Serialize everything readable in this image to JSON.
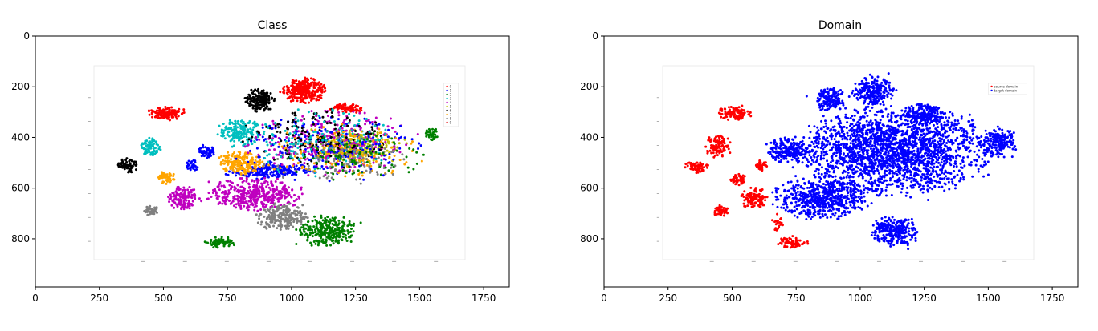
{
  "chart_data": [
    {
      "id": "class",
      "type": "scatter",
      "title": "Class",
      "xlabel": "",
      "ylabel": "",
      "xlim": [
        0,
        1850
      ],
      "ylim": [
        990,
        0
      ],
      "xticks": [
        0,
        250,
        500,
        750,
        1000,
        1250,
        1500,
        1750
      ],
      "yticks": [
        0,
        200,
        400,
        600,
        800
      ],
      "inner_plot": {
        "frame": [
          225,
          180,
          1670,
          880
        ],
        "legend_location": "upper right",
        "legend_entries": [
          "0",
          "1",
          "2",
          "3",
          "4",
          "5",
          "6",
          "7",
          "8",
          "9"
        ],
        "point_colors": [
          "#ff0000",
          "#0000ff",
          "#008000",
          "#00bfbf",
          "#bf00bf",
          "#bfbf00",
          "#000000",
          "#ffa500",
          "#808080",
          "#e41a1c"
        ],
        "clusters": [
          {
            "class": "0",
            "color": "#ff0000",
            "cx": 1050,
            "cy": 215,
            "rx": 70,
            "ry": 40,
            "n": 320
          },
          {
            "class": "0",
            "color": "#ff0000",
            "cx": 510,
            "cy": 305,
            "rx": 60,
            "ry": 22,
            "n": 120
          },
          {
            "class": "0",
            "color": "#ff0000",
            "cx": 1215,
            "cy": 285,
            "rx": 55,
            "ry": 18,
            "n": 80
          },
          {
            "class": "1",
            "color": "#0000ff",
            "cx": 920,
            "cy": 535,
            "rx": 150,
            "ry": 25,
            "n": 200
          },
          {
            "class": "1",
            "color": "#0000ff",
            "cx": 670,
            "cy": 455,
            "rx": 30,
            "ry": 22,
            "n": 60
          },
          {
            "class": "1",
            "color": "#0000ff",
            "cx": 610,
            "cy": 510,
            "rx": 22,
            "ry": 20,
            "n": 35
          },
          {
            "class": "2",
            "color": "#008000",
            "cx": 1140,
            "cy": 770,
            "rx": 100,
            "ry": 50,
            "n": 280
          },
          {
            "class": "2",
            "color": "#008000",
            "cx": 725,
            "cy": 815,
            "rx": 50,
            "ry": 18,
            "n": 70
          },
          {
            "class": "2",
            "color": "#008000",
            "cx": 1545,
            "cy": 385,
            "rx": 25,
            "ry": 20,
            "n": 40
          },
          {
            "class": "3",
            "color": "#00bfbf",
            "cx": 800,
            "cy": 380,
            "rx": 75,
            "ry": 45,
            "n": 180
          },
          {
            "class": "3",
            "color": "#00bfbf",
            "cx": 450,
            "cy": 440,
            "rx": 35,
            "ry": 30,
            "n": 80
          },
          {
            "class": "4",
            "color": "#bf00bf",
            "cx": 860,
            "cy": 625,
            "rx": 160,
            "ry": 55,
            "n": 420
          },
          {
            "class": "4",
            "color": "#bf00bf",
            "cx": 575,
            "cy": 640,
            "rx": 50,
            "ry": 40,
            "n": 140
          },
          {
            "class": "5",
            "color": "#bfbf00",
            "cx": 1260,
            "cy": 440,
            "rx": 150,
            "ry": 60,
            "n": 260
          },
          {
            "class": "6",
            "color": "#000000",
            "cx": 880,
            "cy": 250,
            "rx": 50,
            "ry": 40,
            "n": 170
          },
          {
            "class": "6",
            "color": "#000000",
            "cx": 355,
            "cy": 510,
            "rx": 40,
            "ry": 25,
            "n": 70
          },
          {
            "class": "7",
            "color": "#ffa500",
            "cx": 800,
            "cy": 500,
            "rx": 80,
            "ry": 40,
            "n": 200
          },
          {
            "class": "7",
            "color": "#ffa500",
            "cx": 510,
            "cy": 560,
            "rx": 30,
            "ry": 20,
            "n": 60
          },
          {
            "class": "8",
            "color": "#808080",
            "cx": 960,
            "cy": 715,
            "rx": 90,
            "ry": 40,
            "n": 220
          },
          {
            "class": "8",
            "color": "#808080",
            "cx": 450,
            "cy": 690,
            "rx": 22,
            "ry": 16,
            "n": 45
          },
          {
            "class": "mixed",
            "color": "#bf00bf",
            "cx": 1150,
            "cy": 420,
            "rx": 280,
            "ry": 110,
            "n": 300
          },
          {
            "class": "mixed",
            "color": "#0000ff",
            "cx": 1150,
            "cy": 440,
            "rx": 280,
            "ry": 110,
            "n": 220
          },
          {
            "class": "mixed",
            "color": "#000000",
            "cx": 1100,
            "cy": 400,
            "rx": 250,
            "ry": 100,
            "n": 180
          },
          {
            "class": "mixed",
            "color": "#00bfbf",
            "cx": 1100,
            "cy": 420,
            "rx": 260,
            "ry": 110,
            "n": 150
          },
          {
            "class": "mixed",
            "color": "#ffa500",
            "cx": 1200,
            "cy": 460,
            "rx": 260,
            "ry": 90,
            "n": 130
          },
          {
            "class": "mixed",
            "color": "#808080",
            "cx": 1200,
            "cy": 500,
            "rx": 250,
            "ry": 80,
            "n": 110
          },
          {
            "class": "mixed",
            "color": "#008000",
            "cx": 1250,
            "cy": 480,
            "rx": 220,
            "ry": 90,
            "n": 90
          }
        ]
      }
    },
    {
      "id": "domain",
      "type": "scatter",
      "title": "Domain",
      "xlabel": "",
      "ylabel": "",
      "xlim": [
        0,
        1850
      ],
      "ylim": [
        990,
        0
      ],
      "xticks": [
        0,
        250,
        500,
        750,
        1000,
        1250,
        1500,
        1750
      ],
      "yticks": [
        0,
        200,
        400,
        600,
        800
      ],
      "inner_plot": {
        "frame": [
          225,
          180,
          1670,
          880
        ],
        "legend_location": "upper right",
        "legend_entries": [
          "source domain",
          "target domain"
        ],
        "point_colors": [
          "#ff0000",
          "#0000ff"
        ],
        "clusters": [
          {
            "domain": "source",
            "color": "#ff0000",
            "cx": 510,
            "cy": 305,
            "rx": 60,
            "ry": 22,
            "n": 120
          },
          {
            "domain": "source",
            "color": "#ff0000",
            "cx": 445,
            "cy": 435,
            "rx": 40,
            "ry": 40,
            "n": 110
          },
          {
            "domain": "source",
            "color": "#ff0000",
            "cx": 360,
            "cy": 515,
            "rx": 40,
            "ry": 22,
            "n": 70
          },
          {
            "domain": "source",
            "color": "#ff0000",
            "cx": 520,
            "cy": 565,
            "rx": 30,
            "ry": 18,
            "n": 50
          },
          {
            "domain": "source",
            "color": "#ff0000",
            "cx": 615,
            "cy": 510,
            "rx": 22,
            "ry": 18,
            "n": 35
          },
          {
            "domain": "source",
            "color": "#ff0000",
            "cx": 585,
            "cy": 640,
            "rx": 45,
            "ry": 35,
            "n": 120
          },
          {
            "domain": "source",
            "color": "#ff0000",
            "cx": 455,
            "cy": 690,
            "rx": 25,
            "ry": 18,
            "n": 50
          },
          {
            "domain": "source",
            "color": "#ff0000",
            "cx": 730,
            "cy": 815,
            "rx": 45,
            "ry": 18,
            "n": 70
          },
          {
            "domain": "source",
            "color": "#ff0000",
            "cx": 680,
            "cy": 740,
            "rx": 20,
            "ry": 30,
            "n": 20
          },
          {
            "domain": "target",
            "color": "#0000ff",
            "cx": 1130,
            "cy": 450,
            "rx": 310,
            "ry": 150,
            "n": 2200
          },
          {
            "domain": "target",
            "color": "#0000ff",
            "cx": 1050,
            "cy": 215,
            "rx": 70,
            "ry": 45,
            "n": 250
          },
          {
            "domain": "target",
            "color": "#0000ff",
            "cx": 880,
            "cy": 250,
            "rx": 50,
            "ry": 40,
            "n": 150
          },
          {
            "domain": "target",
            "color": "#0000ff",
            "cx": 720,
            "cy": 450,
            "rx": 70,
            "ry": 40,
            "n": 220
          },
          {
            "domain": "target",
            "color": "#0000ff",
            "cx": 850,
            "cy": 640,
            "rx": 160,
            "ry": 70,
            "n": 600
          },
          {
            "domain": "target",
            "color": "#0000ff",
            "cx": 1140,
            "cy": 770,
            "rx": 80,
            "ry": 50,
            "n": 280
          },
          {
            "domain": "target",
            "color": "#0000ff",
            "cx": 1250,
            "cy": 310,
            "rx": 70,
            "ry": 35,
            "n": 150
          },
          {
            "domain": "target",
            "color": "#0000ff",
            "cx": 1540,
            "cy": 420,
            "rx": 60,
            "ry": 50,
            "n": 200
          }
        ]
      }
    }
  ]
}
